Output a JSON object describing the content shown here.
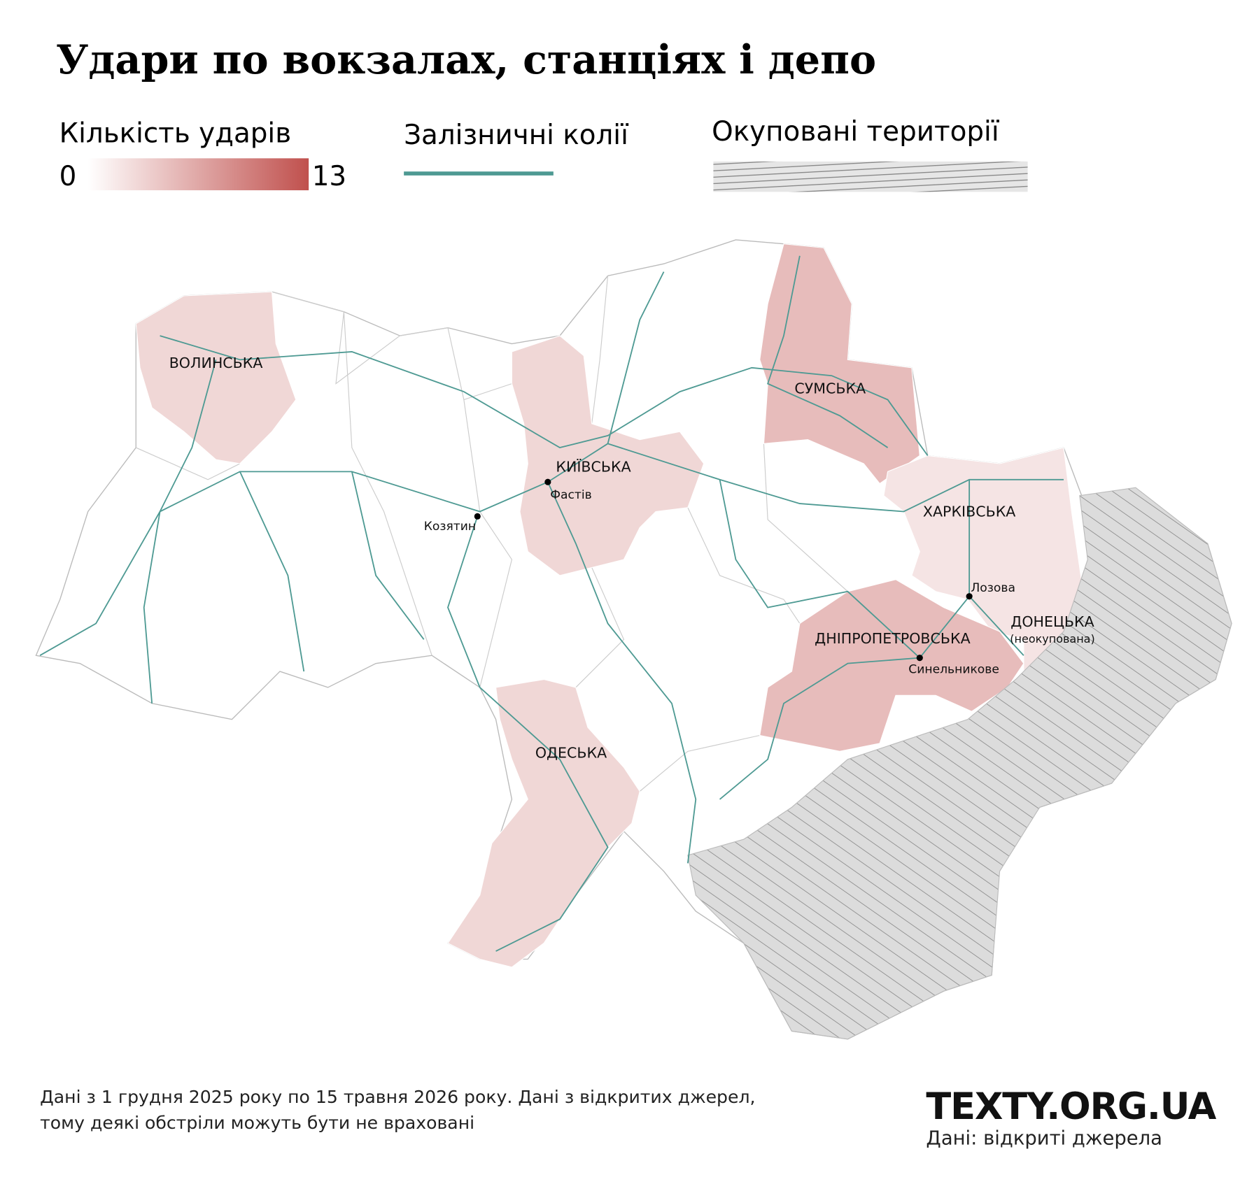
{
  "chart_data": {
    "type": "choropleth",
    "title": "Удари по вокзалах, станціях і депо",
    "legend": {
      "title": "Кількість ударів",
      "min": 0,
      "max": 13,
      "color": "#c0504d"
    },
    "rail_legend": {
      "label": "Залізничні колії",
      "color": "#4e9a93"
    },
    "occupied_legend": {
      "label": "Окуповані території"
    },
    "regions": [
      {
        "name": "ВОЛИНСЬКА",
        "value": 3
      },
      {
        "name": "КИЇВСЬКА",
        "value": 3
      },
      {
        "name": "СУМСЬКА",
        "value": 5
      },
      {
        "name": "ХАРКІВСЬКА",
        "value": 2
      },
      {
        "name": "ДНІПРОПЕТРОВСЬКА",
        "value": 5
      },
      {
        "name": "ДОНЕЦЬКА",
        "note": "(неокупована)",
        "value": 2
      },
      {
        "name": "ОДЕСЬКА",
        "value": 3
      }
    ],
    "cities": [
      "Фастів",
      "Козятин",
      "Лозова",
      "Синельникове"
    ],
    "footnote": [
      "Дані з 1 грудня 2025 року по 15 травня 2026 року. Дані з відкритих джерел,",
      "тому деякі обстріли можуть бути не враховані"
    ],
    "brand": "TEXTY.ORG.UA",
    "source": "Дані: відкриті джерела"
  }
}
